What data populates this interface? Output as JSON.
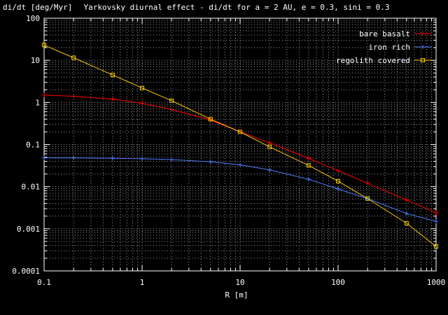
{
  "chart_data": {
    "type": "line",
    "title": "Yarkovsky diurnal effect - di/dt for a = 2 AU, e = 0.3, sini = 0.3",
    "xlabel": "R [m]",
    "ylabel": "di/dt [deg/Myr]",
    "xscale": "log",
    "yscale": "log",
    "xlim": [
      0.1,
      1000
    ],
    "ylim": [
      0.0001,
      100
    ],
    "grid": true,
    "legend_position": "top-right",
    "x_tick_labels": [
      "0.1",
      "1",
      "10",
      "100",
      "1000"
    ],
    "y_tick_labels": [
      "100",
      "10",
      "1",
      "0.1",
      "0.01",
      "0.001",
      "0.0001"
    ],
    "x_ticks": [
      0.1,
      1,
      10,
      100,
      1000
    ],
    "y_ticks": [
      100,
      10,
      1,
      0.1,
      0.01,
      0.001,
      0.0001
    ],
    "x": [
      0.1,
      0.2,
      0.5,
      1,
      2,
      5,
      10,
      20,
      50,
      100,
      200,
      500,
      1000
    ],
    "series": [
      {
        "name": "bare basalt",
        "color": "#ff0000",
        "marker": "plus",
        "values": [
          1.5,
          1.4,
          1.2,
          0.95,
          0.68,
          0.38,
          0.2,
          0.11,
          0.047,
          0.024,
          0.012,
          0.0048,
          0.0024
        ]
      },
      {
        "name": "iron rich",
        "color": "#4f80ff",
        "marker": "plus",
        "values": [
          0.048,
          0.048,
          0.047,
          0.046,
          0.044,
          0.039,
          0.033,
          0.025,
          0.015,
          0.0088,
          0.0052,
          0.0023,
          0.0015
        ]
      },
      {
        "name": "regolith covered",
        "color": "#ffcc00",
        "marker": "square",
        "values": [
          23,
          11.5,
          4.5,
          2.2,
          1.1,
          0.4,
          0.2,
          0.088,
          0.032,
          0.0135,
          0.0052,
          0.00135,
          0.00038
        ]
      }
    ]
  }
}
